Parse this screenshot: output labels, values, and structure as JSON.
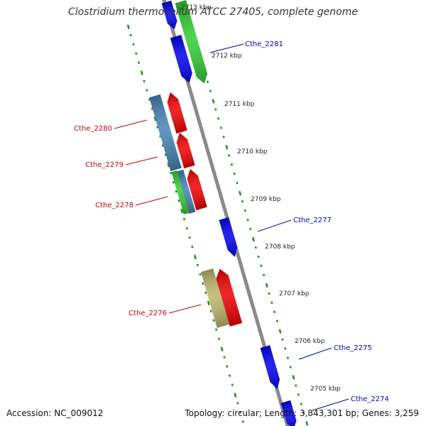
{
  "map": {
    "title": "Clostridium thermocellum ATCC 27405, complete genome",
    "accession": "Accession: NC_009012",
    "summary": "Topology: circular; Length: 3,843,301 bp; Genes: 3,259"
  },
  "colors": {
    "background": "#ffffff",
    "backbone": "#8a8a8a",
    "tick": "#228b22",
    "forward_label": "#0000cc",
    "reverse_label": "#cc0000",
    "blue": "#0000ee",
    "green": "#33cc33",
    "red": "#ee0000",
    "steelblue": "#4682b4",
    "khaki": "#bdb76b"
  },
  "scale_labels": [
    "2713 kbp",
    "2712 kbp",
    "2711 kbp",
    "2710 kbp",
    "2709 kbp",
    "2708 kbp",
    "2707 kbp",
    "2706 kbp",
    "2705 kbp"
  ],
  "gene_labels": [
    {
      "text": "Cthe_2281",
      "strand": "forward"
    },
    {
      "text": "Cthe_2280",
      "strand": "reverse"
    },
    {
      "text": "Cthe_2279",
      "strand": "reverse"
    },
    {
      "text": "Cthe_2278",
      "strand": "reverse"
    },
    {
      "text": "Cthe_2277",
      "strand": "forward"
    },
    {
      "text": "Cthe_2276",
      "strand": "reverse"
    },
    {
      "text": "Cthe_2275",
      "strand": "forward"
    },
    {
      "text": "Cthe_2274",
      "strand": "forward"
    }
  ],
  "features": [
    {
      "ring": "forward-cds",
      "color": "blue"
    },
    {
      "ring": "forward-cds",
      "color": "blue"
    },
    {
      "ring": "forward-cds",
      "color": "blue"
    },
    {
      "ring": "forward-cds",
      "color": "blue"
    },
    {
      "ring": "forward-cds",
      "color": "blue"
    },
    {
      "ring": "forward-orf",
      "color": "green"
    },
    {
      "ring": "reverse-orf",
      "color": "red"
    },
    {
      "ring": "reverse-orf",
      "color": "red"
    },
    {
      "ring": "reverse-orf",
      "color": "red"
    },
    {
      "ring": "reverse-orf",
      "color": "red"
    },
    {
      "ring": "reverse-cds",
      "color": "steelblue"
    },
    {
      "ring": "reverse-cds",
      "color": "steelblue"
    },
    {
      "ring": "reverse-cds",
      "color": "steelblue"
    },
    {
      "ring": "reverse-orf-2",
      "color": "green"
    },
    {
      "ring": "reverse-cds",
      "color": "khaki"
    }
  ]
}
